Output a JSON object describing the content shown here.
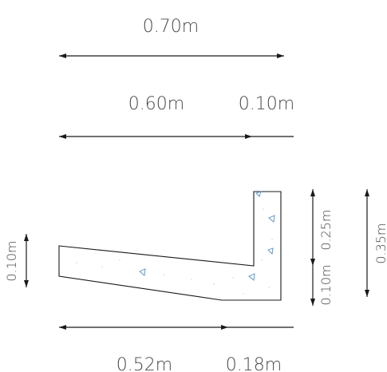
{
  "dimensions": {
    "total_width": "0.70m",
    "slab_width": "0.60m",
    "wall_thickness": "0.10m",
    "bottom_left": "0.52m",
    "bottom_right": "0.18m",
    "left_thickness": "0.10m",
    "right_upper": "0.25m",
    "right_lower": "0.10m",
    "total_height": "0.35m"
  },
  "colors": {
    "line": "#1a1a1a",
    "text": "#4a4a4a",
    "aggregate": "#4a8fd6"
  }
}
